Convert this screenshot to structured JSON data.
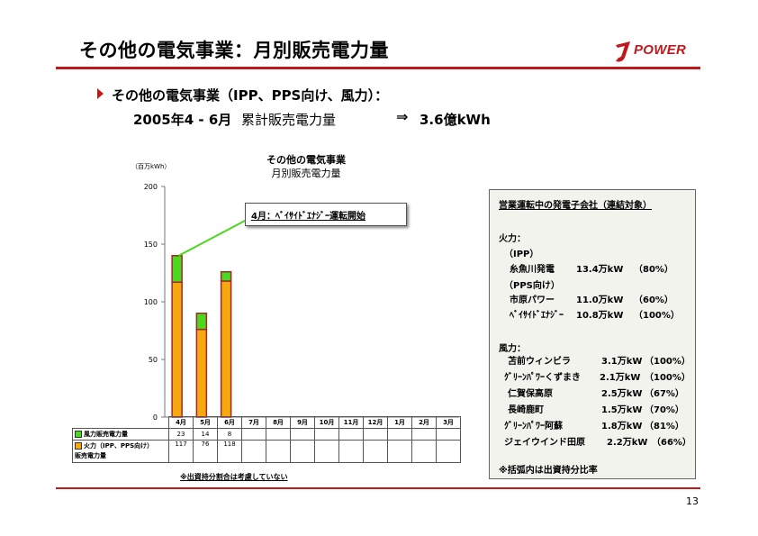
{
  "header": {
    "title": "その他の電気事業：月別販売電力量",
    "logo_text": "POWER",
    "page_number": "13",
    "accent_color": "#c0191b"
  },
  "summary": {
    "heading": "その他の電気事業（IPP、PPS向け、風力）：",
    "period": "2005年4 - 6月",
    "label": "累計販売電力量",
    "arrow": "⇒",
    "value": "3.6億kWh"
  },
  "chart_data": {
    "type": "bar",
    "stacked": true,
    "title": [
      "その他の電気事業",
      "月別販売電力量"
    ],
    "unit": "（百万kWh）",
    "categories": [
      "4月",
      "5月",
      "6月",
      "7月",
      "8月",
      "9月",
      "10月",
      "11月",
      "12月",
      "1月",
      "2月",
      "3月"
    ],
    "ylim": [
      0,
      200
    ],
    "yticks": [
      0,
      50,
      100,
      150,
      200
    ],
    "series": [
      {
        "name": "火力（IPP、PPS向け）販売電力量",
        "values": [
          117,
          76,
          118,
          null,
          null,
          null,
          null,
          null,
          null,
          null,
          null,
          null
        ],
        "color": "#f5a90e",
        "stroke": "#a3262a"
      },
      {
        "name": "風力販売電力量",
        "values": [
          23,
          14,
          8,
          null,
          null,
          null,
          null,
          null,
          null,
          null,
          null,
          null
        ],
        "color": "#4cd81e",
        "stroke": "#a3262a"
      }
    ],
    "callout": "4月：ﾍﾞｲｻｲﾄﾞｴﾅｼﾞｰ運転開始"
  },
  "table": {
    "rows": [
      {
        "label": "風力販売電力量",
        "values": [
          "23",
          "14",
          "8",
          "",
          "",
          "",
          "",
          "",
          "",
          "",
          "",
          ""
        ]
      },
      {
        "label": "火力（IPP、PPS向け）",
        "label2": "販売電力量",
        "values": [
          "117",
          "76",
          "118",
          "",
          "",
          "",
          "",
          "",
          "",
          "",
          "",
          ""
        ]
      }
    ],
    "footnote": "※出資持分割合は考慮していない"
  },
  "panel": {
    "title": "営業運転中の発電子会社（連結対象）",
    "thermal_heading": "火力：",
    "ipp_heading": "（IPP）",
    "pps_heading": "（PPS向け）",
    "wind_heading": "風力：",
    "ipp": [
      {
        "name": "糸魚川発電",
        "capacity": "13.4万kW",
        "share": "（80%）"
      }
    ],
    "pps": [
      {
        "name": "市原パワー",
        "capacity": "11.0万kW",
        "share": "（60%）"
      },
      {
        "name": "ﾍﾞｲｻｲﾄﾞｴﾅｼﾞｰ",
        "capacity": "10.8万kW",
        "share": "（100%）"
      }
    ],
    "wind": [
      {
        "name": "苫前ウィンビラ",
        "capacity": "3.1万kW",
        "share": "（100%）"
      },
      {
        "name": "ｸﾞﾘｰﾝﾊﾟﾜｰくずまき",
        "capacity": "2.1万kW",
        "share": "（100%）"
      },
      {
        "name": "仁賀保高原",
        "capacity": "2.5万kW",
        "share": "（67%）"
      },
      {
        "name": "長崎鹿町",
        "capacity": "1.5万kW",
        "share": "（70%）"
      },
      {
        "name": "ｸﾞﾘｰﾝﾊﾟﾜｰ阿蘇",
        "capacity": "1.8万kW",
        "share": "（81%）"
      },
      {
        "name": "ジェイウインド田原",
        "capacity": "2.2万kW",
        "share": "（66%）"
      }
    ],
    "note": "※括弧内は出資持分比率"
  }
}
